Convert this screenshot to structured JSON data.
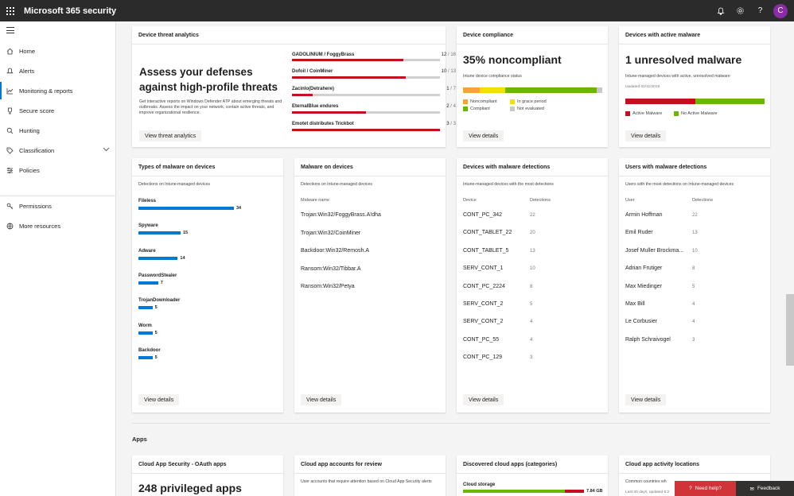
{
  "app": {
    "title": "Microsoft 365 security",
    "avatar_initial": "C"
  },
  "nav": {
    "items": [
      {
        "label": "Home",
        "icon": "home-icon"
      },
      {
        "label": "Alerts",
        "icon": "bell-icon"
      },
      {
        "label": "Monitoring & reports",
        "icon": "chart-icon"
      },
      {
        "label": "Secure score",
        "icon": "trophy-icon"
      },
      {
        "label": "Hunting",
        "icon": "magnifier-icon"
      },
      {
        "label": "Classification",
        "icon": "tag-icon"
      },
      {
        "label": "Policies",
        "icon": "sliders-icon"
      },
      {
        "label": "Permissions",
        "icon": "key-icon"
      },
      {
        "label": "More resources",
        "icon": "globe-icon"
      }
    ]
  },
  "threat": {
    "title": "Device threat analytics",
    "headline": "Assess your defenses against high-profile threats",
    "desc": "Get interactive reports on Windows Defender ATP about emerging threats and outbreaks. Assess the impact on your network, contain active threats, and improve organizational resilience.",
    "button": "View threat analytics",
    "items": [
      {
        "name": "GADOLINIUM / FoggyBrass",
        "count": "12",
        "total": "16",
        "fraction": 0.75
      },
      {
        "name": "Dofoil / CoinMiner",
        "count": "10",
        "total": "13",
        "fraction": 0.77
      },
      {
        "name": "Zacinlo(Detrahere)",
        "count": "1",
        "total": "7",
        "fraction": 0.14
      },
      {
        "name": "EternalBlue endures",
        "count": "2",
        "total": "4",
        "fraction": 0.5
      },
      {
        "name": "Emotet distributes Trickbot",
        "count": "3",
        "total": "3",
        "fraction": 1.0
      }
    ]
  },
  "compliance": {
    "title": "Device compliance",
    "headline": "35% noncompliant",
    "subtitle": "Intune device compliance status",
    "segments": [
      {
        "label": "Noncompliant",
        "color": "#f7a23b",
        "fraction": 0.12
      },
      {
        "label": "In grace period",
        "color": "#f2e000",
        "fraction": 0.18
      },
      {
        "label": "Compliant",
        "color": "#6bb700",
        "fraction": 0.66
      },
      {
        "label": "Not evaluated",
        "color": "#c8c8c8",
        "fraction": 0.04
      }
    ],
    "button": "View details"
  },
  "active_malware": {
    "title": "Devices with active malware",
    "headline": "1 unresolved malware",
    "subtitle": "Intune-managed devices with active, unresolved malware",
    "updated": "Updated 02/11/2019",
    "segments": [
      {
        "label": "Active Malware",
        "color": "#c50f1f",
        "fraction": 0.5
      },
      {
        "label": "No Active Malware",
        "color": "#6bb700",
        "fraction": 0.5
      }
    ],
    "button": "View details"
  },
  "malware_types": {
    "title": "Types of malware on devices",
    "subtitle": "Detections on Intune-managed devices",
    "button": "View details",
    "max": 34,
    "items": [
      {
        "name": "Fileless",
        "value": "34"
      },
      {
        "name": "Spyware",
        "value": "15"
      },
      {
        "name": "Adware",
        "value": "14"
      },
      {
        "name": "PasswordStealer",
        "value": "7"
      },
      {
        "name": "TrojanDownloader",
        "value": "5"
      },
      {
        "name": "Worm",
        "value": "5"
      },
      {
        "name": "Backdoor",
        "value": "5"
      }
    ]
  },
  "malware_devices": {
    "title": "Malware on devices",
    "subtitle": "Detections on Intune-managed devices",
    "col": "Malware name",
    "button": "View details",
    "rows": [
      "Trojan:Win32/FoggyBrass.A!dha",
      "Trojan:Win32/CoinMiner",
      "Backdoor:Win32/Remosh.A",
      "Ransom:Win32/Tibbar.A",
      "Ransom:Win32/Petya"
    ]
  },
  "device_detections": {
    "title": "Devices with malware detections",
    "subtitle": "Intune-managed devices with the most detections",
    "col1": "Device",
    "col2": "Detections",
    "button": "View details",
    "rows": [
      {
        "name": "CONT_PC_342",
        "value": "22"
      },
      {
        "name": "CONT_TABLET_22",
        "value": "20"
      },
      {
        "name": "CONT_TABLET_5",
        "value": "13"
      },
      {
        "name": "SERV_CONT_1",
        "value": "10"
      },
      {
        "name": "CONT_PC_2224",
        "value": "8"
      },
      {
        "name": "SERV_CONT_2",
        "value": "5"
      },
      {
        "name": "SERV_CONT_2",
        "value": "4"
      },
      {
        "name": "CONT_PC_55",
        "value": "4"
      },
      {
        "name": "CONT_PC_129",
        "value": "3"
      }
    ]
  },
  "user_detections": {
    "title": "Users with malware detections",
    "subtitle": "Users with the most detections on Intune-managed devices",
    "col1": "User",
    "col2": "Detections",
    "button": "View details",
    "rows": [
      {
        "name": "Armin Hoffman",
        "value": "22"
      },
      {
        "name": "Emil Ruder",
        "value": "13"
      },
      {
        "name": "Josef Muller Brockma...",
        "value": "10"
      },
      {
        "name": "Adrian Frutiger",
        "value": "8"
      },
      {
        "name": "Max Miedinger",
        "value": "5"
      },
      {
        "name": "Max Bill",
        "value": "4"
      },
      {
        "name": "Le Corbusier",
        "value": "4"
      },
      {
        "name": "Ralph Schraivogel",
        "value": "3"
      }
    ]
  },
  "apps": {
    "section": "Apps",
    "oauth": {
      "title": "Cloud App Security - OAuth apps",
      "headline": "248 privileged apps"
    },
    "accounts": {
      "title": "Cloud app accounts for review",
      "subtitle": "User accounts that require attention based on Cloud App Security alerts"
    },
    "discovered": {
      "title": "Discovered cloud apps (categories)",
      "item": "Cloud storage",
      "value": "7.84 GB"
    },
    "activity": {
      "title": "Cloud app activity locations",
      "subtitle": "Common countries wh",
      "updated": "Last 30 days; updated 6:2"
    }
  },
  "footer": {
    "need_help": "Need help?",
    "feedback": "Feedback"
  }
}
